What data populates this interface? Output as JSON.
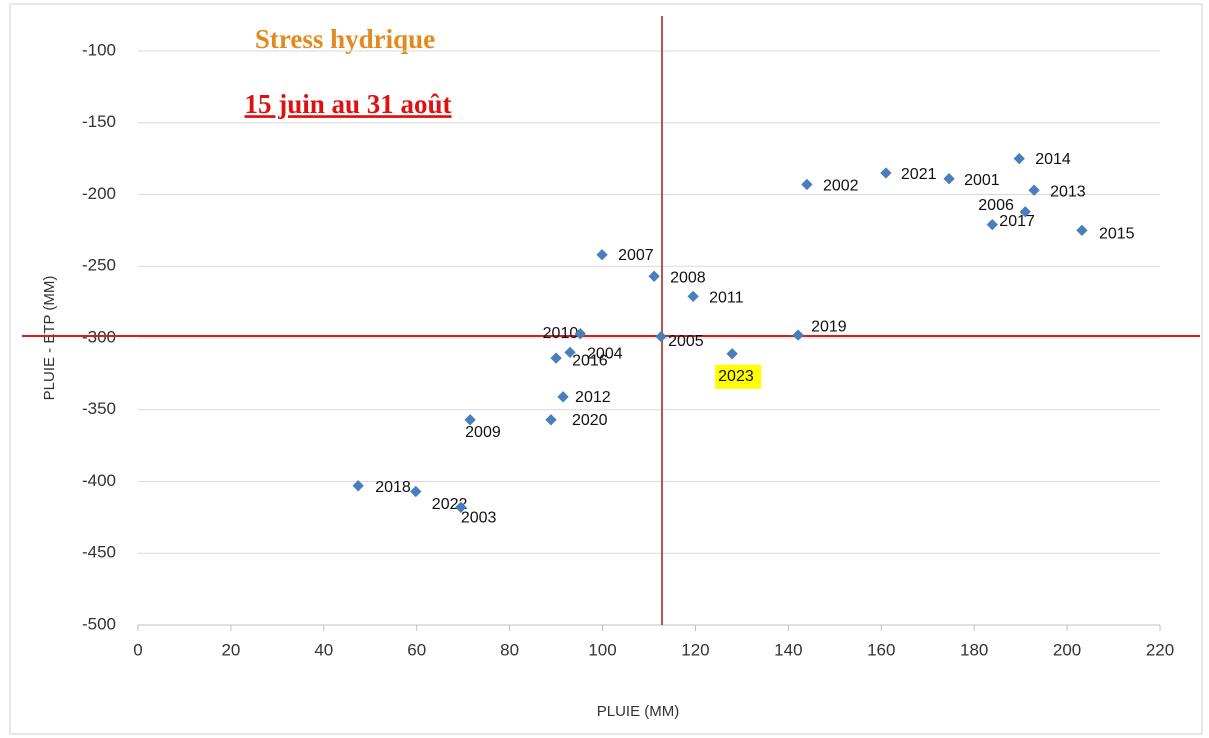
{
  "chart_data": {
    "type": "scatter",
    "title": "Stress hydrique",
    "subtitle": "15 juin au 31 août",
    "xlabel": "PLUIE (MM)",
    "ylabel": "PLUIE - ETP (MM)",
    "labels": [
      "2018",
      "2022",
      "2003",
      "2009",
      "2020",
      "2012",
      "2016",
      "2004",
      "2010",
      "2007",
      "2008",
      "2011",
      "2005",
      "2023",
      "2019",
      "2002",
      "2021",
      "2001",
      "2014",
      "2013",
      "2006",
      "2017",
      "2015"
    ],
    "x": [
      47.4,
      59.8,
      69.5,
      71.5,
      88.9,
      91.5,
      90,
      93,
      95.2,
      99.9,
      111.1,
      119.5,
      112.6,
      127.9,
      142.1,
      144,
      161,
      174.6,
      189.7,
      192.9,
      191,
      183.9,
      203.2
    ],
    "values": [
      -403,
      -407,
      -418,
      -357,
      -357,
      -341,
      -314,
      -310,
      -297,
      -242,
      -257,
      -271,
      -299,
      -311,
      -298,
      -193,
      -185,
      -189,
      -175,
      -197,
      -212,
      -221,
      -225
    ],
    "color": "#4a7ebb",
    "highlight_index": 13,
    "highlight_color": "#ffff00",
    "reference_lines": {
      "x": 112.8,
      "y": -298.6,
      "x_color": "#b85450",
      "y_color": "#cc2222"
    },
    "xlim": [
      0,
      220
    ],
    "xticks": [
      0,
      20,
      40,
      60,
      80,
      100,
      120,
      140,
      160,
      180,
      200,
      220
    ],
    "ylim": [
      -500,
      -100
    ],
    "yticks": [
      -500,
      -450,
      -400,
      -350,
      -300,
      -250,
      -200,
      -150,
      -100
    ],
    "grid": true
  }
}
